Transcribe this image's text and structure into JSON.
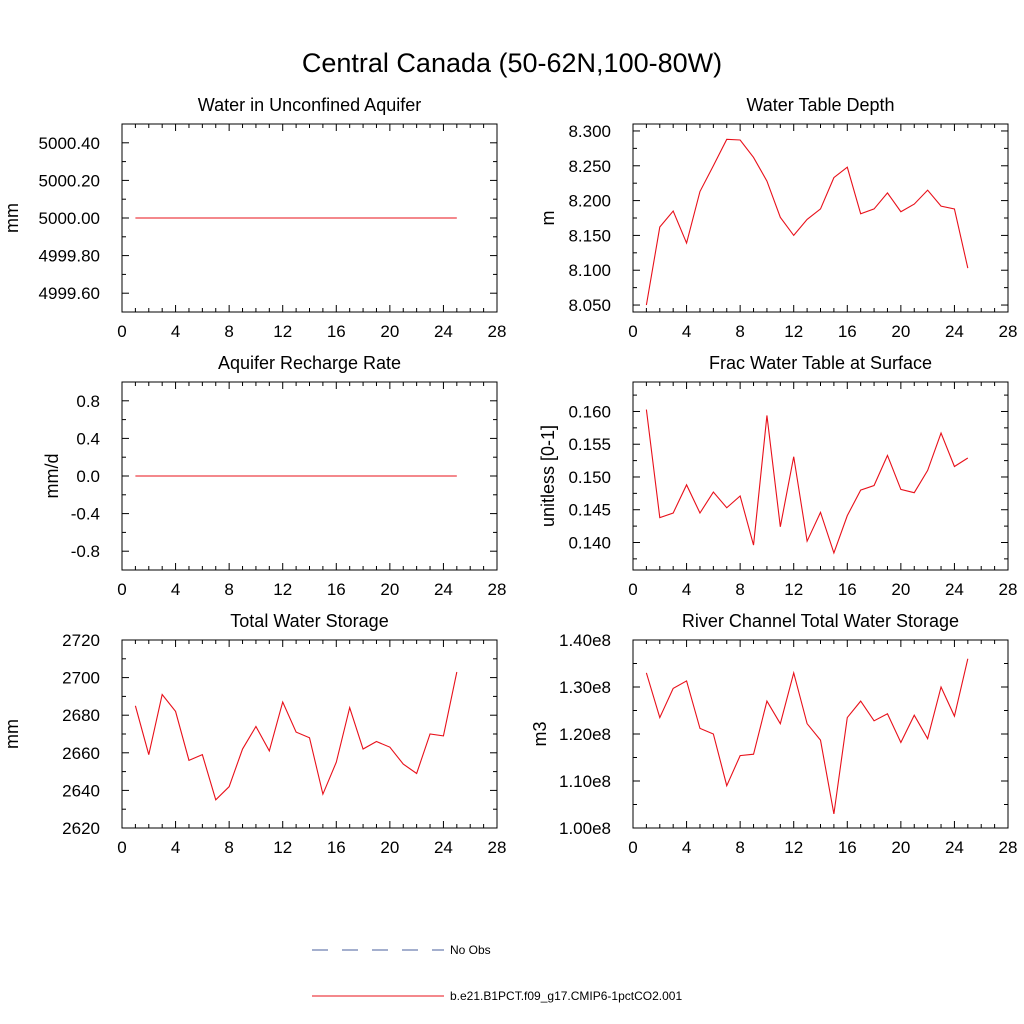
{
  "title": "Central Canada (50-62N,100-80W)",
  "legend": [
    {
      "label": "No Obs",
      "color": "#4a5f9e",
      "dash": "dashed"
    },
    {
      "label": "b.e21.B1PCT.f09_g17.CMIP6-1pctCO2.001",
      "color": "#e8101a",
      "dash": "solid"
    }
  ],
  "chart_data": [
    {
      "type": "line",
      "title": "Water in Unconfined Aquifer",
      "ylabel": "mm",
      "xlim": [
        0,
        28
      ],
      "xticks": [
        0,
        4,
        8,
        12,
        16,
        20,
        24,
        28
      ],
      "ylim": [
        4999.5,
        5000.5
      ],
      "yticks": [
        4999.6,
        4999.8,
        5000.0,
        5000.2,
        5000.4
      ],
      "ytick_labels": [
        "4999.60",
        "4999.80",
        "5000.00",
        "5000.20",
        "5000.40"
      ],
      "x": [
        1,
        2,
        3,
        4,
        5,
        6,
        7,
        8,
        9,
        10,
        11,
        12,
        13,
        14,
        15,
        16,
        17,
        18,
        19,
        20,
        21,
        22,
        23,
        24,
        25
      ],
      "series": [
        {
          "color": "#e8101a",
          "values": [
            5000,
            5000,
            5000,
            5000,
            5000,
            5000,
            5000,
            5000,
            5000,
            5000,
            5000,
            5000,
            5000,
            5000,
            5000,
            5000,
            5000,
            5000,
            5000,
            5000,
            5000,
            5000,
            5000,
            5000,
            5000
          ]
        }
      ]
    },
    {
      "type": "line",
      "title": "Water Table Depth",
      "ylabel": "m",
      "xlim": [
        0,
        28
      ],
      "xticks": [
        0,
        4,
        8,
        12,
        16,
        20,
        24,
        28
      ],
      "ylim": [
        8.04,
        8.31
      ],
      "yticks": [
        8.05,
        8.1,
        8.15,
        8.2,
        8.25,
        8.3
      ],
      "ytick_labels": [
        "8.050",
        "8.100",
        "8.150",
        "8.200",
        "8.250",
        "8.300"
      ],
      "x": [
        1,
        2,
        3,
        4,
        5,
        6,
        7,
        8,
        9,
        10,
        11,
        12,
        13,
        14,
        15,
        16,
        17,
        18,
        19,
        20,
        21,
        22,
        23,
        24,
        25
      ],
      "series": [
        {
          "color": "#e8101a",
          "values": [
            8.05,
            8.162,
            8.185,
            8.139,
            8.213,
            8.25,
            8.288,
            8.287,
            8.262,
            8.228,
            8.176,
            8.15,
            8.173,
            8.188,
            8.233,
            8.248,
            8.181,
            8.188,
            8.211,
            8.184,
            8.195,
            8.215,
            8.192,
            8.188,
            8.103
          ]
        }
      ]
    },
    {
      "type": "line",
      "title": "Aquifer Recharge Rate",
      "ylabel": "mm/d",
      "xlim": [
        0,
        28
      ],
      "xticks": [
        0,
        4,
        8,
        12,
        16,
        20,
        24,
        28
      ],
      "ylim": [
        -1.0,
        1.0
      ],
      "yticks": [
        -0.8,
        -0.4,
        0.0,
        0.4,
        0.8
      ],
      "ytick_labels": [
        "-0.8",
        "-0.4",
        "0.0",
        "0.4",
        "0.8"
      ],
      "x": [
        1,
        2,
        3,
        4,
        5,
        6,
        7,
        8,
        9,
        10,
        11,
        12,
        13,
        14,
        15,
        16,
        17,
        18,
        19,
        20,
        21,
        22,
        23,
        24,
        25
      ],
      "series": [
        {
          "color": "#e8101a",
          "values": [
            0,
            0,
            0,
            0,
            0,
            0,
            0,
            0,
            0,
            0,
            0,
            0,
            0,
            0,
            0,
            0,
            0,
            0,
            0,
            0,
            0,
            0,
            0,
            0,
            0
          ]
        }
      ]
    },
    {
      "type": "line",
      "title": "Frac Water Table at Surface",
      "ylabel": "unitless [0-1]",
      "xlim": [
        0,
        28
      ],
      "xticks": [
        0,
        4,
        8,
        12,
        16,
        20,
        24,
        28
      ],
      "ylim": [
        0.1358,
        0.1645
      ],
      "yticks": [
        0.14,
        0.145,
        0.15,
        0.155,
        0.16
      ],
      "ytick_labels": [
        "0.140",
        "0.145",
        "0.150",
        "0.155",
        "0.160"
      ],
      "x": [
        1,
        2,
        3,
        4,
        5,
        6,
        7,
        8,
        9,
        10,
        11,
        12,
        13,
        14,
        15,
        16,
        17,
        18,
        19,
        20,
        21,
        22,
        23,
        24,
        25
      ],
      "series": [
        {
          "color": "#e8101a",
          "values": [
            0.1603,
            0.1438,
            0.1445,
            0.1488,
            0.1445,
            0.1477,
            0.1453,
            0.1471,
            0.1396,
            0.1594,
            0.1424,
            0.1531,
            0.1402,
            0.1446,
            0.1384,
            0.1441,
            0.148,
            0.1487,
            0.1533,
            0.1481,
            0.1476,
            0.151,
            0.1567,
            0.1516,
            0.1529
          ]
        }
      ]
    },
    {
      "type": "line",
      "title": "Total Water Storage",
      "ylabel": "mm",
      "xlim": [
        0,
        28
      ],
      "xticks": [
        0,
        4,
        8,
        12,
        16,
        20,
        24,
        28
      ],
      "ylim": [
        2620,
        2720
      ],
      "yticks": [
        2620,
        2640,
        2660,
        2680,
        2700,
        2720
      ],
      "ytick_labels": [
        "2620",
        "2640",
        "2660",
        "2680",
        "2700",
        "2720"
      ],
      "x": [
        1,
        2,
        3,
        4,
        5,
        6,
        7,
        8,
        9,
        10,
        11,
        12,
        13,
        14,
        15,
        16,
        17,
        18,
        19,
        20,
        21,
        22,
        23,
        24,
        25
      ],
      "series": [
        {
          "color": "#e8101a",
          "values": [
            2685,
            2659,
            2691,
            2682,
            2656,
            2659,
            2635,
            2642,
            2662,
            2674,
            2661,
            2687,
            2671,
            2668,
            2638,
            2655,
            2684,
            2662,
            2666,
            2663,
            2654,
            2649,
            2670,
            2669,
            2703
          ]
        }
      ]
    },
    {
      "type": "line",
      "title": "River Channel Total Water Storage",
      "ylabel": "m3",
      "xlim": [
        0,
        28
      ],
      "xticks": [
        0,
        4,
        8,
        12,
        16,
        20,
        24,
        28
      ],
      "ylim": [
        100000000.0,
        140000000.0
      ],
      "yticks": [
        100000000.0,
        110000000.0,
        120000000.0,
        130000000.0,
        140000000.0
      ],
      "ytick_labels": [
        "1.00e8",
        "1.10e8",
        "1.20e8",
        "1.30e8",
        "1.40e8"
      ],
      "x": [
        1,
        2,
        3,
        4,
        5,
        6,
        7,
        8,
        9,
        10,
        11,
        12,
        13,
        14,
        15,
        16,
        17,
        18,
        19,
        20,
        21,
        22,
        23,
        24,
        25
      ],
      "series": [
        {
          "color": "#e8101a",
          "values": [
            133000000.0,
            123500000.0,
            129700000.0,
            131300000.0,
            121200000.0,
            120000000.0,
            109000000.0,
            115400000.0,
            115700000.0,
            127000000.0,
            122200000.0,
            133000000.0,
            122200000.0,
            118700000.0,
            103000000.0,
            123500000.0,
            127000000.0,
            122800000.0,
            124300000.0,
            118200000.0,
            124000000.0,
            119000000.0,
            130000000.0,
            123800000.0,
            136000000.0
          ]
        }
      ]
    }
  ]
}
